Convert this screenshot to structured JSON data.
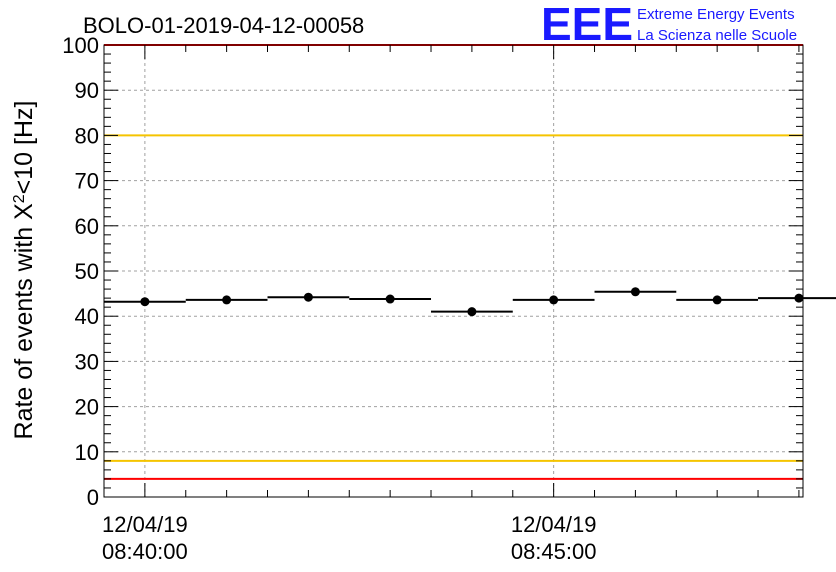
{
  "chart_data": {
    "type": "scatter",
    "title": "BOLO-01-2019-04-12-00058",
    "ylabel": {
      "prefix": "Rate of events with X",
      "superscript": "2",
      "suffix": "<10 [Hz]"
    },
    "ylim": [
      0,
      100
    ],
    "yticks": [
      0,
      10,
      20,
      30,
      40,
      50,
      60,
      70,
      80,
      90,
      100
    ],
    "xlim_minutes": [
      -0.5,
      8.05
    ],
    "xticks": [
      {
        "line1": "12/04/19",
        "line2": "08:40:00",
        "minute": 0
      },
      {
        "line1": "12/04/19",
        "line2": "08:45:00",
        "minute": 5
      }
    ],
    "grid": true,
    "series": [
      {
        "bin_width_minutes": 1,
        "points": [
          {
            "minute": 0,
            "value": 43.2
          },
          {
            "minute": 1,
            "value": 43.6
          },
          {
            "minute": 2,
            "value": 44.2
          },
          {
            "minute": 3,
            "value": 43.8
          },
          {
            "minute": 4,
            "value": 41.0
          },
          {
            "minute": 5,
            "value": 43.6
          },
          {
            "minute": 6,
            "value": 45.4
          },
          {
            "minute": 7,
            "value": 43.6
          },
          {
            "minute": 8,
            "value": 44.0
          }
        ]
      }
    ],
    "reference_lines": [
      {
        "value": 100,
        "color": "#ff0000"
      },
      {
        "value": 80,
        "color": "#f5c400"
      },
      {
        "value": 8,
        "color": "#f5c400"
      },
      {
        "value": 4,
        "color": "#ff0000"
      }
    ]
  },
  "logo": {
    "mark": "EEE",
    "line1": "Extreme Energy Events",
    "line2": "La Scienza nelle Scuole"
  }
}
